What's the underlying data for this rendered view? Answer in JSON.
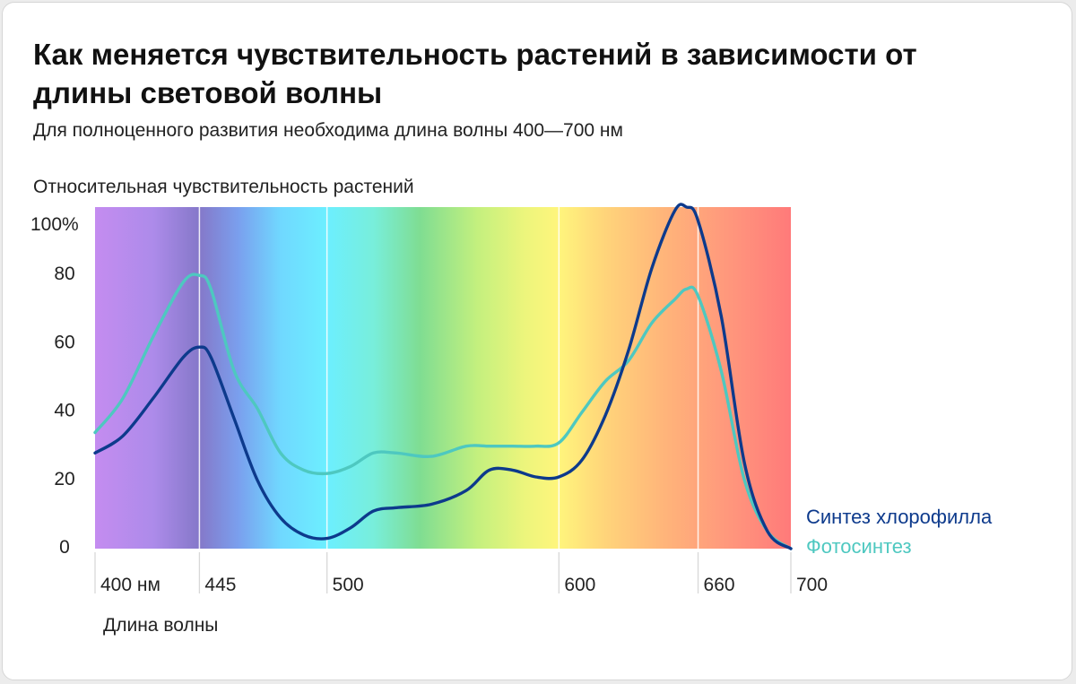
{
  "title": "Как меняется чувствительность растений в зависимости от длины световой волны",
  "subtitle": "Для полноценного развития необходима длина волны 400—700 нм",
  "chart_data": {
    "type": "line",
    "ylabel": "Относительная чувствительность растений",
    "xlabel": "Длина волны",
    "xlim": [
      400,
      700
    ],
    "ylim": [
      0,
      100
    ],
    "x_ticks": [
      {
        "value": 400,
        "label": "400 нм"
      },
      {
        "value": 445,
        "label": "445"
      },
      {
        "value": 500,
        "label": "500"
      },
      {
        "value": 600,
        "label": "600"
      },
      {
        "value": 660,
        "label": "660"
      },
      {
        "value": 700,
        "label": "700"
      }
    ],
    "y_ticks": [
      {
        "value": 0,
        "label": "0"
      },
      {
        "value": 20,
        "label": "20"
      },
      {
        "value": 40,
        "label": "40"
      },
      {
        "value": 60,
        "label": "60"
      },
      {
        "value": 80,
        "label": "80"
      },
      {
        "value": 100,
        "label": "100%"
      }
    ],
    "guide_lines_x": [
      445,
      500,
      600,
      660
    ],
    "spectrum_colors": [
      {
        "x": 400,
        "color": "#c48cf0"
      },
      {
        "x": 425,
        "color": "#ad8bea"
      },
      {
        "x": 445,
        "color": "#8578c9"
      },
      {
        "x": 462,
        "color": "#7aa0ee"
      },
      {
        "x": 480,
        "color": "#70d8ff"
      },
      {
        "x": 500,
        "color": "#6cefff"
      },
      {
        "x": 520,
        "color": "#78eedb"
      },
      {
        "x": 540,
        "color": "#7fdd92"
      },
      {
        "x": 565,
        "color": "#c4f07e"
      },
      {
        "x": 585,
        "color": "#ecf57c"
      },
      {
        "x": 600,
        "color": "#fff57c"
      },
      {
        "x": 620,
        "color": "#ffd47a"
      },
      {
        "x": 645,
        "color": "#ffb57a"
      },
      {
        "x": 675,
        "color": "#ff957c"
      },
      {
        "x": 700,
        "color": "#ff7a7a"
      }
    ],
    "series": [
      {
        "name": "Синтез хлорофилла",
        "color": "#0d3a8c",
        "points": [
          [
            400,
            28
          ],
          [
            412,
            33
          ],
          [
            425,
            44
          ],
          [
            438,
            56
          ],
          [
            445,
            59
          ],
          [
            450,
            56
          ],
          [
            460,
            38
          ],
          [
            470,
            20
          ],
          [
            480,
            9
          ],
          [
            490,
            4
          ],
          [
            500,
            3
          ],
          [
            510,
            6
          ],
          [
            520,
            11
          ],
          [
            530,
            12
          ],
          [
            545,
            13
          ],
          [
            560,
            17
          ],
          [
            570,
            23
          ],
          [
            580,
            23
          ],
          [
            590,
            21
          ],
          [
            600,
            21
          ],
          [
            610,
            26
          ],
          [
            620,
            39
          ],
          [
            630,
            58
          ],
          [
            640,
            82
          ],
          [
            650,
            99
          ],
          [
            655,
            100
          ],
          [
            660,
            96
          ],
          [
            670,
            68
          ],
          [
            680,
            25
          ],
          [
            690,
            5
          ],
          [
            700,
            0
          ]
        ]
      },
      {
        "name": "Фотосинтез",
        "color": "#4ec8c0",
        "points": [
          [
            400,
            34
          ],
          [
            412,
            44
          ],
          [
            425,
            62
          ],
          [
            438,
            78
          ],
          [
            445,
            80
          ],
          [
            450,
            76
          ],
          [
            460,
            52
          ],
          [
            470,
            41
          ],
          [
            480,
            28
          ],
          [
            490,
            23
          ],
          [
            500,
            22
          ],
          [
            510,
            24
          ],
          [
            520,
            28
          ],
          [
            530,
            28
          ],
          [
            545,
            27
          ],
          [
            560,
            30
          ],
          [
            570,
            30
          ],
          [
            580,
            30
          ],
          [
            590,
            30
          ],
          [
            600,
            31
          ],
          [
            610,
            40
          ],
          [
            620,
            49
          ],
          [
            630,
            55
          ],
          [
            640,
            66
          ],
          [
            650,
            73
          ],
          [
            655,
            76
          ],
          [
            660,
            74
          ],
          [
            670,
            52
          ],
          [
            680,
            20
          ],
          [
            690,
            5
          ],
          [
            700,
            0
          ]
        ]
      }
    ]
  }
}
